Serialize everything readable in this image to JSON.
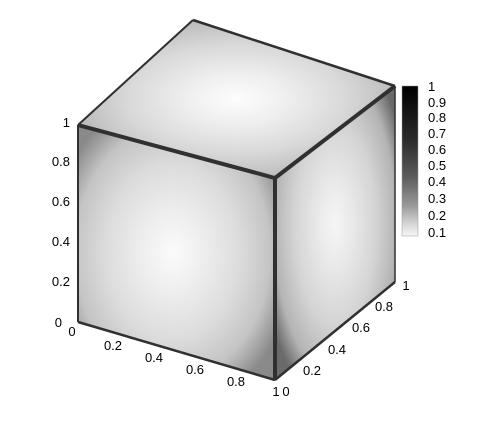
{
  "chart_data": {
    "type": "heatmap",
    "title": "",
    "description_type": "3d-surface-colormap-cube",
    "axes": {
      "x": {
        "range": [
          0,
          1
        ],
        "tick_labels": [
          "0",
          "0.2",
          "0.4",
          "0.6",
          "0.8",
          "1"
        ]
      },
      "y": {
        "range": [
          0,
          1
        ],
        "tick_labels": [
          "0",
          "0.2",
          "0.4",
          "0.6",
          "0.8",
          "1"
        ]
      },
      "z": {
        "range": [
          0,
          1
        ],
        "tick_labels": [
          "0",
          "0.2",
          "0.4",
          "0.6",
          "0.8",
          "1"
        ]
      }
    },
    "colorbar": {
      "range": [
        0.1,
        1
      ],
      "tick_labels": [
        "1",
        "0.9",
        "0.8",
        "0.7",
        "0.6",
        "0.5",
        "0.4",
        "0.3",
        "0.2",
        "0.1"
      ],
      "colormap": "grayscale",
      "low_color": "#ffffff",
      "high_color": "#000000"
    },
    "faces": [
      {
        "face": "front",
        "center_value": 0.1,
        "edge_value": 0.5
      },
      {
        "face": "top",
        "center_value": 0.1,
        "edge_value": 0.5
      },
      {
        "face": "right",
        "center_value": 0.1,
        "edge_value": 0.5
      }
    ],
    "grid": false,
    "legend_placement": "right"
  }
}
